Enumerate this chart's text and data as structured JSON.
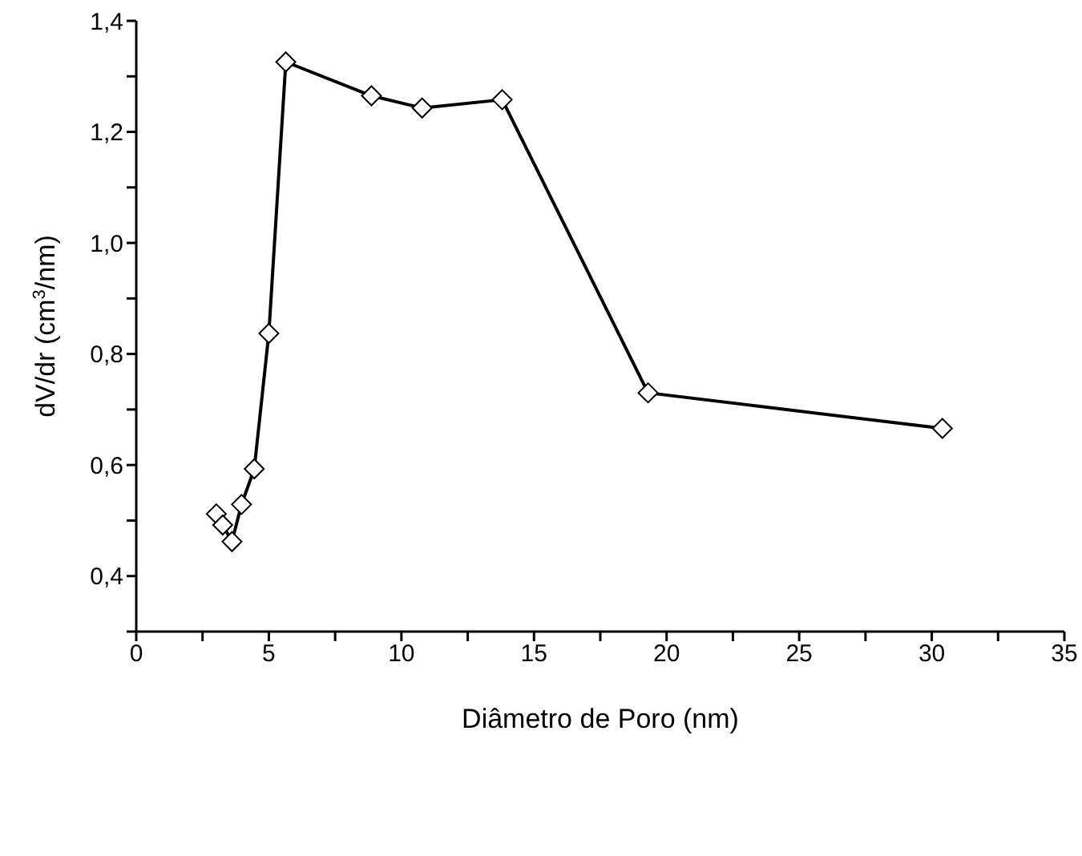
{
  "chart_data": {
    "type": "line",
    "xlabel": "Diâmetro de Poro (nm)",
    "ylabel": "dV/dr (cm$^{3}$/nm)",
    "x": [
      3.02,
      3.26,
      3.61,
      3.97,
      4.45,
      5.0,
      5.64,
      8.87,
      10.78,
      13.8,
      19.3,
      30.4
    ],
    "series": [
      {
        "color": "#000000",
        "values": [
          0.512,
          0.492,
          0.462,
          0.529,
          0.593,
          0.837,
          1.326,
          1.265,
          1.243,
          1.258,
          0.73,
          0.666
        ]
      }
    ],
    "marker": "diamond",
    "line_style": "solid",
    "grid": false,
    "legend": false,
    "xlim": [
      0,
      35
    ],
    "xticks": [
      0,
      {
        "value": 2.5,
        "label": null
      },
      5,
      {
        "value": 7.5,
        "label": null
      },
      10,
      {
        "value": 12.5,
        "label": null
      },
      15,
      {
        "value": 17.5,
        "label": null
      },
      20,
      {
        "value": 22.5,
        "label": null
      },
      25,
      {
        "value": 27.5,
        "label": null
      },
      30,
      {
        "value": 32.5,
        "label": null
      },
      35
    ],
    "ylim": [
      0.3,
      1.4
    ],
    "yticks": [
      {
        "value": 0.3,
        "label": null
      },
      {
        "value": 0.4,
        "label": "0,4"
      },
      {
        "value": 0.5,
        "label": null
      },
      {
        "value": 0.6,
        "label": "0,6"
      },
      {
        "value": 0.7,
        "label": null
      },
      {
        "value": 0.8,
        "label": "0,8"
      },
      {
        "value": 0.9,
        "label": null
      },
      {
        "value": 1.0,
        "label": "1,0"
      },
      {
        "value": 1.1,
        "label": null
      },
      {
        "value": 1.2,
        "label": "1,2"
      },
      {
        "value": 1.3,
        "label": null
      },
      {
        "value": 1.4,
        "label": "1,4"
      }
    ]
  }
}
